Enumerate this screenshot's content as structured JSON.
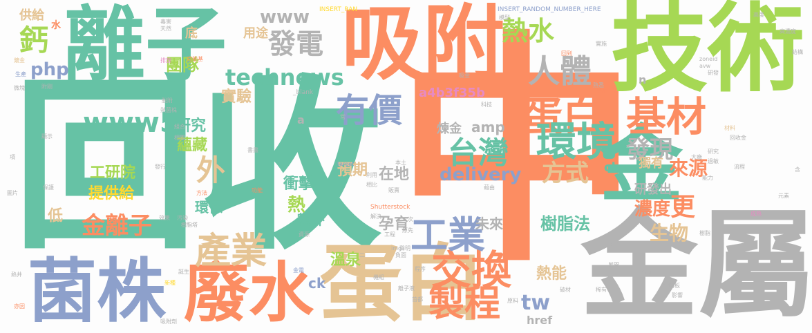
{
  "palette": {
    "green": "#66c2a5",
    "orange": "#fc8d62",
    "blue": "#8da0cb",
    "pink": "#e78ac3",
    "lime": "#a6d854",
    "yellow": "#ffd92f",
    "tan": "#e5c494",
    "gray": "#b3b3b3"
  },
  "words": [
    {
      "text": "回收",
      "color": "#66c2a5"
    },
    {
      "text": "中",
      "color": "#fc8d62"
    },
    {
      "text": "金屬",
      "color": "#b3b3b3"
    },
    {
      "text": "技術",
      "color": "#a6d854"
    },
    {
      "text": "離子",
      "color": "#66c2a5"
    },
    {
      "text": "吸附",
      "color": "#fc8d62"
    },
    {
      "text": "金",
      "color": "#66c2a5"
    },
    {
      "text": "菌株",
      "color": "#8da0cb"
    },
    {
      "text": "廢水",
      "color": "#fc8d62"
    },
    {
      "text": "蛋白",
      "color": "#e5c494"
    },
    {
      "text": "蛋白",
      "color": "#fc8d62"
    },
    {
      "text": "基材",
      "color": "#fc8d62"
    },
    {
      "text": "環境",
      "color": "#66c2a5"
    },
    {
      "text": "台灣",
      "color": "#66c2a5"
    },
    {
      "text": "交換",
      "color": "#fc8d62"
    },
    {
      "text": "製程",
      "color": "#fc8d62"
    },
    {
      "text": "工業",
      "color": "#8da0cb"
    },
    {
      "text": "產業",
      "color": "#e5c494"
    },
    {
      "text": "人體",
      "color": "#b3b3b3"
    },
    {
      "text": "有價",
      "color": "#8da0cb"
    },
    {
      "text": "熱水",
      "color": "#a6d854"
    },
    {
      "text": "發電",
      "color": "#b3b3b3"
    },
    {
      "text": "technews",
      "color": "#66c2a5"
    },
    {
      "text": "www5",
      "color": "#66c2a5"
    },
    {
      "text": "www",
      "color": "#b3b3b3"
    },
    {
      "text": "鈣",
      "color": "#a6d854"
    },
    {
      "text": "外",
      "color": "#e5c494"
    },
    {
      "text": "金離子",
      "color": "#fc8d62"
    },
    {
      "text": "工研院",
      "color": "#a6d854"
    },
    {
      "text": "提供給",
      "color": "#ffd92f"
    },
    {
      "text": "delivery",
      "color": "#8da0cb"
    },
    {
      "text": "方式",
      "color": "#e5c494"
    },
    {
      "text": "發現",
      "color": "#b3b3b3"
    },
    {
      "text": "更",
      "color": "#fc8d62"
    },
    {
      "text": "來源",
      "color": "#fc8d62"
    },
    {
      "text": "濃度",
      "color": "#fc8d62"
    },
    {
      "text": "生物",
      "color": "#e5c494"
    },
    {
      "text": "樹脂法",
      "color": "#66c2a5"
    },
    {
      "text": "tw",
      "color": "#8da0cb"
    },
    {
      "text": "團隊",
      "color": "#a6d854"
    },
    {
      "text": "php",
      "color": "#8da0cb"
    },
    {
      "text": "實驗",
      "color": "#e5c494"
    },
    {
      "text": "研究",
      "color": "#66c2a5"
    },
    {
      "text": "蘊藏",
      "color": "#a6d854"
    },
    {
      "text": "預期",
      "color": "#e5c494"
    },
    {
      "text": "在地",
      "color": "#b3b3b3"
    },
    {
      "text": "衝擊",
      "color": "#66c2a5"
    },
    {
      "text": "環保",
      "color": "#66c2a5"
    },
    {
      "text": "熱",
      "color": "#a6d854"
    },
    {
      "text": "額外",
      "color": "#66c2a5"
    },
    {
      "text": "孕育",
      "color": "#b3b3b3"
    },
    {
      "text": "未來",
      "color": "#b3b3b3"
    },
    {
      "text": "溫泉",
      "color": "#a6d854"
    },
    {
      "text": "ck",
      "color": "#8da0cb"
    },
    {
      "text": "href",
      "color": "#b3b3b3"
    },
    {
      "text": "熱能",
      "color": "#e5c494"
    },
    {
      "text": "a4b3f35b",
      "color": "#e78ac3"
    },
    {
      "text": "煉金",
      "color": "#b3b3b3"
    },
    {
      "text": "amp",
      "color": "#b3b3b3"
    },
    {
      "text": "用途",
      "color": "#e5c494"
    },
    {
      "text": "底",
      "color": "#e5c494"
    },
    {
      "text": "獨有",
      "color": "#e5c494"
    },
    {
      "text": "研發出",
      "color": "#b3b3b3"
    },
    {
      "text": "cb",
      "color": "#66c2a5"
    },
    {
      "text": "低",
      "color": "#e5c494"
    },
    {
      "text": "供給",
      "color": "#e5c494"
    },
    {
      "text": "水",
      "color": "#fc8d62"
    },
    {
      "text": "a",
      "color": "#b3b3b3"
    },
    {
      "text": "n",
      "color": "#b3b3b3"
    },
    {
      "text": "INSERT_RAN",
      "color": "#ffd92f"
    },
    {
      "text": "INSERT_RANDOM_NUMBER_HERE",
      "color": "#8da0cb"
    },
    {
      "text": "_blank",
      "color": "#b3b3b3"
    },
    {
      "text": "Shutterstock",
      "color": "#fc8d62"
    },
    {
      "text": "target",
      "color": "#8da0cb"
    },
    {
      "text": "zoneid",
      "color": "#b3b3b3"
    },
    {
      "text": "src",
      "color": "#b3b3b3"
    },
    {
      "text": "img",
      "color": "#b3b3b3"
    },
    {
      "text": "avw",
      "color": "#b3b3b3"
    },
    {
      "text": "天然",
      "color": "#b3b3b3"
    },
    {
      "text": "毒害",
      "color": "#b3b3b3"
    },
    {
      "text": "模型",
      "color": "#b3b3b3"
    },
    {
      "text": "高度",
      "color": "#b3b3b3"
    },
    {
      "text": "高濃度",
      "color": "#b3b3b3"
    },
    {
      "text": "結構",
      "color": "#b3b3b3"
    },
    {
      "text": "鍍金",
      "color": "#e5c494"
    },
    {
      "text": "生產",
      "color": "#8da0cb"
    },
    {
      "text": "微塊",
      "color": "#b3b3b3"
    },
    {
      "text": "附剛",
      "color": "#b3b3b3"
    },
    {
      "text": "排放",
      "color": "#e78ac3"
    },
    {
      "text": "官能基",
      "color": "#fc8d62"
    },
    {
      "text": "吸金",
      "color": "#b3b3b3"
    },
    {
      "text": "回到",
      "color": "#fc8d62"
    },
    {
      "text": "熟悉",
      "color": "#b3b3b3"
    },
    {
      "text": "研發",
      "color": "#b3b3b3"
    },
    {
      "text": "回收金",
      "color": "#b3b3b3"
    },
    {
      "text": "研究",
      "color": "#b3b3b3"
    },
    {
      "text": "材料",
      "color": "#e5c494"
    },
    {
      "text": "電路板",
      "color": "#b3b3b3"
    },
    {
      "text": "科技",
      "color": "#b3b3b3"
    },
    {
      "text": "本土",
      "color": "#b3b3b3"
    },
    {
      "text": "利用",
      "color": "#b3b3b3"
    },
    {
      "text": "工程",
      "color": "#b3b3b3"
    },
    {
      "text": "解決",
      "color": "#b3b3b3"
    },
    {
      "text": "負面",
      "color": "#b3b3b3"
    },
    {
      "text": "程序",
      "color": "#b3b3b3"
    },
    {
      "text": "機組",
      "color": "#b3b3b3"
    },
    {
      "text": "離子液",
      "color": "#b3b3b3"
    },
    {
      "text": "金電",
      "color": "#8da0cb"
    },
    {
      "text": "誕生",
      "color": "#b3b3b3"
    },
    {
      "text": "新種",
      "color": "#ffd92f"
    },
    {
      "text": "熱井",
      "color": "#b3b3b3"
    },
    {
      "text": "圖片",
      "color": "#b3b3b3"
    },
    {
      "text": "吸附劑",
      "color": "#b3b3b3"
    },
    {
      "text": "影響",
      "color": "#b3b3b3"
    },
    {
      "text": "稀有",
      "color": "#b3b3b3"
    },
    {
      "text": "破材",
      "color": "#b3b3b3"
    },
    {
      "text": "原料",
      "color": "#b3b3b3"
    },
    {
      "text": "印刷",
      "color": "#b3b3b3"
    },
    {
      "text": "能力",
      "color": "#b3b3b3"
    },
    {
      "text": "元素",
      "color": "#b3b3b3"
    },
    {
      "text": "成熟",
      "color": "#e78ac3"
    },
    {
      "text": "樹脂",
      "color": "#b3b3b3"
    },
    {
      "text": "展開",
      "color": "#b3b3b3"
    },
    {
      "text": "含",
      "color": "#b3b3b3"
    },
    {
      "text": "流程",
      "color": "#b3b3b3"
    },
    {
      "text": "過敏",
      "color": "#b3b3b3"
    },
    {
      "text": "大廠",
      "color": "#b3b3b3"
    },
    {
      "text": "項",
      "color": "#b3b3b3"
    },
    {
      "text": "顯示",
      "color": "#b3b3b3"
    },
    {
      "text": "保護",
      "color": "#b3b3b3"
    },
    {
      "text": "污染",
      "color": "#b3b3b3"
    },
    {
      "text": "方法",
      "color": "#fc8d62"
    },
    {
      "text": "功能",
      "color": "#fc8d62"
    },
    {
      "text": "書畫",
      "color": "#b3b3b3"
    },
    {
      "text": "組合",
      "color": "#b3b3b3"
    },
    {
      "text": "相關",
      "color": "#b3b3b3"
    },
    {
      "text": "樹脂塔",
      "color": "#b3b3b3"
    },
    {
      "text": "效果",
      "color": "#b3b3b3"
    },
    {
      "text": "發行",
      "color": "#b3b3b3"
    },
    {
      "text": "藉由",
      "color": "#b3b3b3"
    },
    {
      "text": "相比",
      "color": "#b3b3b3"
    },
    {
      "text": "販賣",
      "color": "#b3b3b3"
    },
    {
      "text": "原先",
      "color": "#b3b3b3"
    },
    {
      "text": "聲明",
      "color": "#b3b3b3"
    },
    {
      "text": "首都",
      "color": "#b3b3b3"
    },
    {
      "text": "資源",
      "color": "#b3b3b3"
    },
    {
      "text": "實施",
      "color": "#b3b3b3"
    },
    {
      "text": "操作",
      "color": "#fc8d62"
    },
    {
      "text": "脫附",
      "color": "#b3b3b3"
    },
    {
      "text": "熱菌株",
      "color": "#b3b3b3"
    },
    {
      "text": "亦因",
      "color": "#b3b3b3"
    },
    {
      "text": "常",
      "color": "#b3b3b3"
    },
    {
      "text": "二",
      "color": "#b3b3b3"
    },
    {
      "text": "次",
      "color": "#b3b3b3"
    }
  ]
}
